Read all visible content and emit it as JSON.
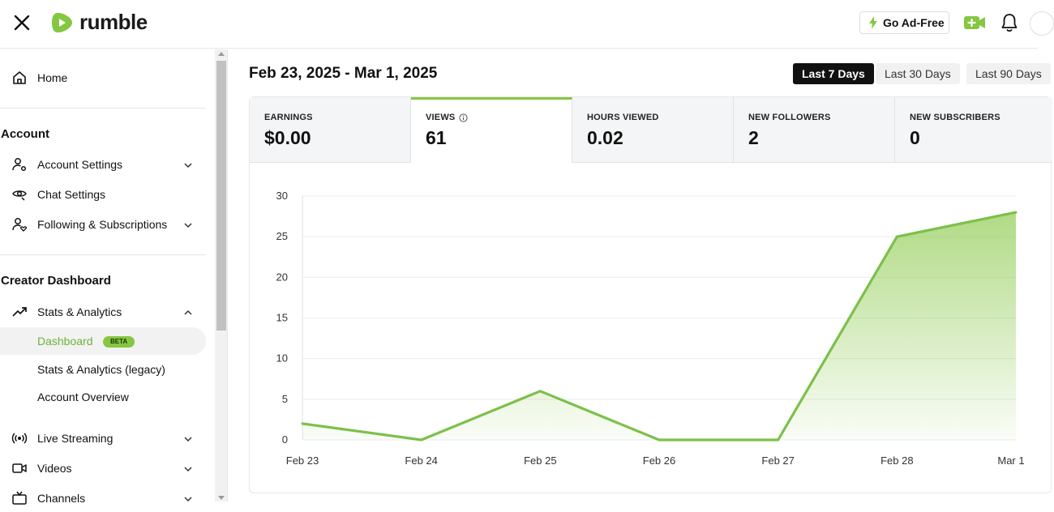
{
  "header": {
    "logo_text": "rumble",
    "go_adfree_label": "Go Ad-Free",
    "icons": [
      "close-icon",
      "lightning-icon",
      "add-video-icon",
      "bell-icon"
    ]
  },
  "sidebar": {
    "home_label": "Home",
    "account_title": "Account",
    "account_items": [
      {
        "label": "Account Settings",
        "icon": "user-gear-icon",
        "expandable": true
      },
      {
        "label": "Chat Settings",
        "icon": "eye-icon",
        "expandable": false
      },
      {
        "label": "Following & Subscriptions",
        "icon": "user-heart-icon",
        "expandable": true
      }
    ],
    "creator_title": "Creator Dashboard",
    "stats_label": "Stats & Analytics",
    "stats_sub": [
      {
        "label": "Dashboard",
        "badge": "BETA",
        "active": true
      },
      {
        "label": "Stats & Analytics (legacy)"
      },
      {
        "label": "Account Overview"
      }
    ],
    "more_items": [
      {
        "label": "Live Streaming",
        "icon": "broadcast-icon"
      },
      {
        "label": "Videos",
        "icon": "video-camera-icon"
      },
      {
        "label": "Channels",
        "icon": "tv-icon"
      }
    ]
  },
  "main": {
    "date_range": "Feb 23, 2025 - Mar 1, 2025",
    "range_buttons": [
      "Last 7 Days",
      "Last 30 Days",
      "Last 90 Days"
    ],
    "active_range": "Last 7 Days",
    "metrics": [
      {
        "label": "EARNINGS",
        "value": "$0.00"
      },
      {
        "label": "VIEWS",
        "value": "61",
        "info": true,
        "active": true
      },
      {
        "label": "HOURS VIEWED",
        "value": "0.02"
      },
      {
        "label": "NEW FOLLOWERS",
        "value": "2"
      },
      {
        "label": "NEW SUBSCRIBERS",
        "value": "0"
      }
    ]
  },
  "colors": {
    "accent": "#85c742",
    "line": "#7cc04a",
    "active_text": "#6fb23a"
  },
  "chart_data": {
    "type": "area",
    "title": "",
    "xlabel": "",
    "ylabel": "",
    "categories": [
      "Feb 23",
      "Feb 24",
      "Feb 25",
      "Feb 26",
      "Feb 27",
      "Feb 28",
      "Mar 1"
    ],
    "values": [
      2,
      0,
      6,
      0,
      0,
      25,
      28
    ],
    "yticks": [
      0,
      5,
      10,
      15,
      20,
      25,
      30
    ],
    "ylim": [
      0,
      30
    ],
    "grid": true,
    "legend": "none"
  }
}
